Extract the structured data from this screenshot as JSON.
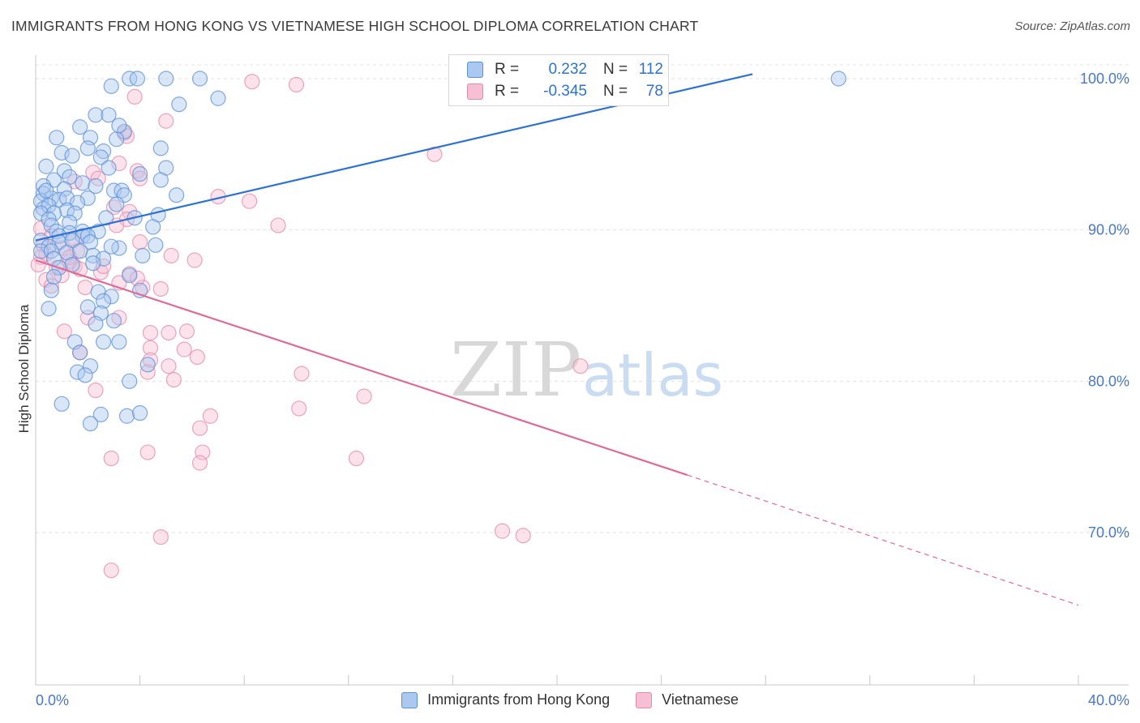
{
  "header": {
    "title": "IMMIGRANTS FROM HONG KONG VS VIETNAMESE HIGH SCHOOL DIPLOMA CORRELATION CHART",
    "source": "Source: ZipAtlas.com"
  },
  "watermark": {
    "part1": "ZIP",
    "part2": "atlas"
  },
  "legend": {
    "rows": [
      {
        "r_label": "R =",
        "r_value": "0.232",
        "n_label": "N =",
        "n_value": "112"
      },
      {
        "r_label": "R =",
        "r_value": "-0.345",
        "n_label": "N =",
        "n_value": "78"
      }
    ]
  },
  "colors": {
    "blue_fill": "#aac8f0",
    "blue_stroke": "#5b8fd6",
    "blue_line": "#2d72d2",
    "pink_fill": "#f6bfd3",
    "pink_stroke": "#e589ab",
    "pink_line": "#de6b96",
    "axis_text": "#4a78c8"
  },
  "chart_data": {
    "type": "scatter",
    "title": "IMMIGRANTS FROM HONG KONG VS VIETNAMESE HIGH SCHOOL DIPLOMA CORRELATION CHART",
    "xlabel": "",
    "ylabel": "High School Diploma",
    "xlim": [
      0,
      40
    ],
    "ylim": [
      61,
      101.5
    ],
    "x_tick_labels": [
      "0.0%",
      "40.0%"
    ],
    "y_ticks": [
      {
        "value": 70,
        "label": "70.0%"
      },
      {
        "value": 80,
        "label": "80.0%"
      },
      {
        "value": 90,
        "label": "90.0%"
      },
      {
        "value": 100,
        "label": "100.0%"
      }
    ],
    "grid": true,
    "series": [
      {
        "name": "Immigrants from Hong Kong",
        "color": "blue",
        "R": 0.232,
        "N": 112,
        "trend": {
          "x": [
            0,
            27.5
          ],
          "y": [
            89.3,
            100.3
          ],
          "dashed_extension_to": null
        },
        "points": [
          [
            3.6,
            100
          ],
          [
            3.9,
            100
          ],
          [
            5.0,
            100
          ],
          [
            6.3,
            100
          ],
          [
            30.8,
            100
          ],
          [
            2.9,
            99.5
          ],
          [
            7.0,
            98.7
          ],
          [
            5.5,
            98.3
          ],
          [
            2.3,
            97.6
          ],
          [
            2.8,
            97.6
          ],
          [
            1.7,
            96.8
          ],
          [
            3.4,
            96.5
          ],
          [
            0.8,
            96.1
          ],
          [
            2.1,
            96.1
          ],
          [
            3.1,
            96.0
          ],
          [
            4.8,
            95.4
          ],
          [
            1.0,
            95.1
          ],
          [
            2.0,
            95.4
          ],
          [
            2.6,
            95.2
          ],
          [
            2.5,
            94.8
          ],
          [
            0.4,
            94.2
          ],
          [
            1.1,
            93.9
          ],
          [
            2.8,
            94.1
          ],
          [
            5.0,
            94.1
          ],
          [
            4.0,
            93.7
          ],
          [
            0.7,
            93.3
          ],
          [
            1.3,
            93.5
          ],
          [
            4.8,
            93.3
          ],
          [
            1.8,
            93.1
          ],
          [
            2.3,
            92.9
          ],
          [
            0.3,
            92.9
          ],
          [
            1.1,
            92.7
          ],
          [
            0.3,
            92.4
          ],
          [
            3.0,
            92.6
          ],
          [
            3.3,
            92.6
          ],
          [
            3.4,
            92.3
          ],
          [
            5.4,
            92.3
          ],
          [
            0.6,
            92.1
          ],
          [
            0.9,
            92.0
          ],
          [
            1.2,
            92.1
          ],
          [
            2.0,
            92.1
          ],
          [
            0.2,
            91.9
          ],
          [
            1.6,
            91.8
          ],
          [
            3.1,
            91.7
          ],
          [
            0.3,
            91.4
          ],
          [
            0.5,
            91.6
          ],
          [
            1.2,
            91.3
          ],
          [
            0.2,
            91.1
          ],
          [
            0.7,
            91.1
          ],
          [
            1.5,
            91.1
          ],
          [
            4.7,
            91.0
          ],
          [
            0.5,
            90.7
          ],
          [
            2.7,
            90.8
          ],
          [
            3.8,
            90.8
          ],
          [
            1.3,
            90.5
          ],
          [
            0.6,
            90.3
          ],
          [
            4.5,
            90.2
          ],
          [
            0.8,
            89.9
          ],
          [
            1.8,
            89.9
          ],
          [
            1.3,
            89.8
          ],
          [
            2.4,
            89.9
          ],
          [
            0.9,
            89.6
          ],
          [
            1.8,
            89.6
          ],
          [
            2.0,
            89.6
          ],
          [
            0.2,
            89.3
          ],
          [
            0.9,
            89.2
          ],
          [
            1.4,
            89.3
          ],
          [
            2.1,
            89.2
          ],
          [
            4.6,
            89.0
          ],
          [
            0.5,
            88.9
          ],
          [
            3.2,
            88.8
          ],
          [
            0.2,
            88.6
          ],
          [
            0.6,
            88.6
          ],
          [
            1.2,
            88.5
          ],
          [
            2.2,
            88.3
          ],
          [
            4.1,
            88.3
          ],
          [
            0.7,
            88.1
          ],
          [
            2.6,
            88.1
          ],
          [
            2.2,
            87.8
          ],
          [
            1.4,
            87.7
          ],
          [
            0.9,
            87.5
          ],
          [
            3.6,
            87.0
          ],
          [
            0.7,
            86.9
          ],
          [
            0.6,
            86.0
          ],
          [
            2.4,
            85.9
          ],
          [
            4.0,
            86.0
          ],
          [
            2.9,
            85.6
          ],
          [
            2.0,
            84.9
          ],
          [
            2.6,
            85.3
          ],
          [
            0.5,
            84.8
          ],
          [
            2.5,
            84.5
          ],
          [
            3.0,
            84.0
          ],
          [
            2.3,
            83.8
          ],
          [
            1.5,
            82.6
          ],
          [
            2.6,
            82.6
          ],
          [
            3.2,
            82.6
          ],
          [
            1.7,
            81.9
          ],
          [
            4.3,
            81.1
          ],
          [
            2.1,
            81.0
          ],
          [
            1.6,
            80.6
          ],
          [
            1.9,
            80.4
          ],
          [
            3.6,
            80.0
          ],
          [
            1.0,
            78.5
          ],
          [
            2.5,
            77.8
          ],
          [
            3.5,
            77.7
          ],
          [
            4.0,
            77.9
          ],
          [
            2.1,
            77.2
          ],
          [
            3.2,
            96.9
          ],
          [
            0.4,
            92.6
          ],
          [
            1.4,
            94.9
          ],
          [
            2.9,
            88.9
          ],
          [
            1.7,
            88.6
          ]
        ]
      },
      {
        "name": "Vietnamese",
        "color": "pink",
        "R": -0.345,
        "N": 78,
        "trend": {
          "x": [
            0,
            25.0
          ],
          "y": [
            88.0,
            73.8
          ],
          "dashed_extension_to": [
            40.0,
            65.2
          ]
        },
        "points": [
          [
            8.3,
            99.8
          ],
          [
            10.0,
            99.6
          ],
          [
            3.8,
            98.8
          ],
          [
            5.0,
            97.2
          ],
          [
            3.4,
            96.4
          ],
          [
            3.5,
            96.2
          ],
          [
            15.3,
            95.0
          ],
          [
            3.2,
            94.4
          ],
          [
            3.9,
            93.9
          ],
          [
            2.2,
            93.8
          ],
          [
            4.0,
            93.4
          ],
          [
            2.4,
            93.4
          ],
          [
            1.5,
            93.2
          ],
          [
            7.0,
            92.2
          ],
          [
            8.2,
            91.9
          ],
          [
            3.0,
            91.5
          ],
          [
            3.6,
            91.2
          ],
          [
            3.5,
            90.7
          ],
          [
            9.3,
            90.3
          ],
          [
            3.1,
            90.3
          ],
          [
            0.2,
            90.1
          ],
          [
            0.6,
            89.6
          ],
          [
            1.5,
            89.4
          ],
          [
            4.0,
            89.2
          ],
          [
            0.3,
            89.0
          ],
          [
            1.0,
            88.8
          ],
          [
            1.6,
            88.6
          ],
          [
            0.4,
            88.4
          ],
          [
            0.2,
            88.2
          ],
          [
            5.2,
            88.3
          ],
          [
            6.1,
            88.0
          ],
          [
            1.3,
            87.9
          ],
          [
            1.5,
            87.6
          ],
          [
            0.1,
            87.7
          ],
          [
            0.8,
            87.5
          ],
          [
            1.7,
            87.4
          ],
          [
            2.5,
            87.2
          ],
          [
            3.6,
            87.1
          ],
          [
            3.2,
            86.5
          ],
          [
            1.9,
            86.2
          ],
          [
            4.1,
            86.2
          ],
          [
            4.8,
            86.1
          ],
          [
            2.0,
            84.2
          ],
          [
            3.2,
            84.2
          ],
          [
            1.1,
            83.3
          ],
          [
            4.4,
            83.2
          ],
          [
            5.1,
            83.2
          ],
          [
            5.8,
            83.3
          ],
          [
            4.4,
            82.2
          ],
          [
            5.7,
            82.1
          ],
          [
            6.2,
            81.6
          ],
          [
            4.4,
            81.4
          ],
          [
            1.7,
            81.9
          ],
          [
            4.3,
            80.6
          ],
          [
            5.1,
            81.0
          ],
          [
            10.2,
            80.5
          ],
          [
            5.3,
            80.1
          ],
          [
            20.9,
            81.0
          ],
          [
            2.3,
            79.4
          ],
          [
            12.6,
            79.0
          ],
          [
            10.1,
            78.2
          ],
          [
            6.7,
            77.7
          ],
          [
            6.3,
            76.9
          ],
          [
            4.3,
            75.3
          ],
          [
            6.4,
            75.3
          ],
          [
            2.9,
            74.9
          ],
          [
            6.3,
            74.6
          ],
          [
            12.3,
            74.9
          ],
          [
            17.9,
            70.1
          ],
          [
            18.7,
            69.8
          ],
          [
            4.8,
            69.7
          ],
          [
            2.9,
            67.5
          ],
          [
            0.4,
            86.7
          ],
          [
            0.6,
            86.3
          ],
          [
            1.0,
            87.0
          ],
          [
            1.3,
            88.2
          ],
          [
            2.6,
            87.6
          ],
          [
            3.9,
            86.8
          ]
        ]
      }
    ]
  },
  "bottom_legend": {
    "items": [
      {
        "label": "Immigrants from Hong Kong"
      },
      {
        "label": "Vietnamese"
      }
    ]
  }
}
